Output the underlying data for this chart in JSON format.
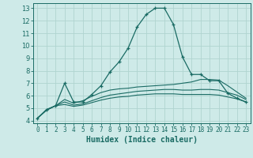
{
  "xlabel": "Humidex (Indice chaleur)",
  "bg_color": "#ceeae8",
  "grid_color": "#b0d4d0",
  "line_color": "#1a6b64",
  "xlim": [
    -0.5,
    23.5
  ],
  "ylim": [
    3.8,
    13.4
  ],
  "yticks": [
    4,
    5,
    6,
    7,
    8,
    9,
    10,
    11,
    12,
    13
  ],
  "xticks": [
    0,
    1,
    2,
    3,
    4,
    5,
    6,
    7,
    8,
    9,
    10,
    11,
    12,
    13,
    14,
    15,
    16,
    17,
    18,
    19,
    20,
    21,
    22,
    23
  ],
  "line1_x": [
    0,
    1,
    2,
    3,
    4,
    5,
    6,
    7,
    8,
    9,
    10,
    11,
    12,
    13,
    14,
    15,
    16,
    17,
    18,
    19,
    20,
    21,
    22,
    23
  ],
  "line1_y": [
    4.2,
    4.9,
    5.2,
    7.0,
    5.5,
    5.5,
    6.1,
    6.8,
    7.9,
    8.7,
    9.8,
    11.5,
    12.5,
    13.0,
    13.0,
    11.7,
    9.1,
    7.7,
    7.7,
    7.2,
    7.2,
    6.2,
    5.8,
    5.5
  ],
  "line2_x": [
    0,
    1,
    2,
    3,
    4,
    5,
    6,
    7,
    8,
    9,
    10,
    11,
    12,
    13,
    14,
    15,
    16,
    17,
    18,
    19,
    20,
    21,
    22,
    23
  ],
  "line2_y": [
    4.2,
    4.85,
    5.2,
    5.7,
    5.4,
    5.6,
    5.95,
    6.25,
    6.45,
    6.55,
    6.6,
    6.7,
    6.75,
    6.8,
    6.85,
    6.9,
    7.0,
    7.1,
    7.3,
    7.3,
    7.25,
    6.8,
    6.3,
    5.8
  ],
  "line3_x": [
    0,
    1,
    2,
    3,
    4,
    5,
    6,
    7,
    8,
    9,
    10,
    11,
    12,
    13,
    14,
    15,
    16,
    17,
    18,
    19,
    20,
    21,
    22,
    23
  ],
  "line3_y": [
    4.2,
    4.85,
    5.2,
    5.5,
    5.25,
    5.35,
    5.6,
    5.85,
    6.05,
    6.15,
    6.25,
    6.35,
    6.4,
    6.45,
    6.5,
    6.5,
    6.45,
    6.45,
    6.5,
    6.5,
    6.45,
    6.25,
    6.05,
    5.7
  ],
  "line4_x": [
    0,
    1,
    2,
    3,
    4,
    5,
    6,
    7,
    8,
    9,
    10,
    11,
    12,
    13,
    14,
    15,
    16,
    17,
    18,
    19,
    20,
    21,
    22,
    23
  ],
  "line4_y": [
    4.2,
    4.85,
    5.2,
    5.3,
    5.15,
    5.25,
    5.45,
    5.65,
    5.8,
    5.9,
    5.95,
    6.05,
    6.1,
    6.15,
    6.15,
    6.15,
    6.1,
    6.1,
    6.1,
    6.1,
    6.05,
    5.9,
    5.75,
    5.5
  ]
}
